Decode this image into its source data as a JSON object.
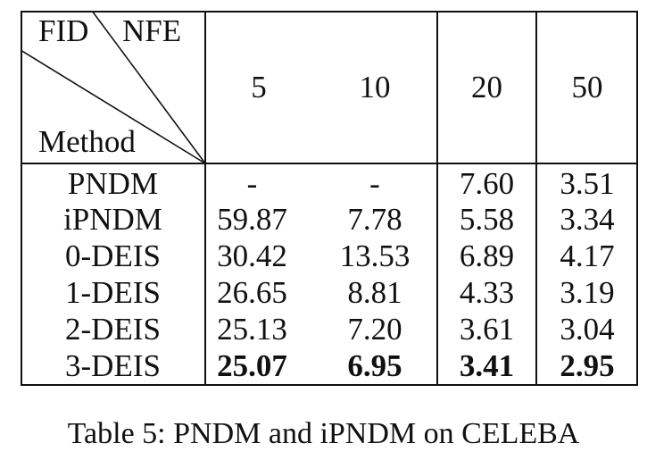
{
  "table": {
    "corner": {
      "top_label": "FID",
      "right_label": "NFE",
      "bottom_label": "Method"
    },
    "nfe_columns": [
      "5",
      "10",
      "20",
      "50"
    ],
    "rows": [
      {
        "method": "PNDM",
        "values": [
          "-",
          "-",
          "7.60",
          "3.51"
        ],
        "bold": [
          false,
          false,
          false,
          false
        ]
      },
      {
        "method": "iPNDM",
        "values": [
          "59.87",
          "7.78",
          "5.58",
          "3.34"
        ],
        "bold": [
          false,
          false,
          false,
          false
        ]
      },
      {
        "method": "0-DEIS",
        "values": [
          "30.42",
          "13.53",
          "6.89",
          "4.17"
        ],
        "bold": [
          false,
          false,
          false,
          false
        ]
      },
      {
        "method": "1-DEIS",
        "values": [
          "26.65",
          "8.81",
          "4.33",
          "3.19"
        ],
        "bold": [
          false,
          false,
          false,
          false
        ]
      },
      {
        "method": "2-DEIS",
        "values": [
          "25.13",
          "7.20",
          "3.61",
          "3.04"
        ],
        "bold": [
          false,
          false,
          false,
          false
        ]
      },
      {
        "method": "3-DEIS",
        "values": [
          "25.07",
          "6.95",
          "3.41",
          "2.95"
        ],
        "bold": [
          true,
          true,
          true,
          true
        ]
      }
    ]
  },
  "caption": "Table 5: PNDM and iPNDM on CELEBA"
}
